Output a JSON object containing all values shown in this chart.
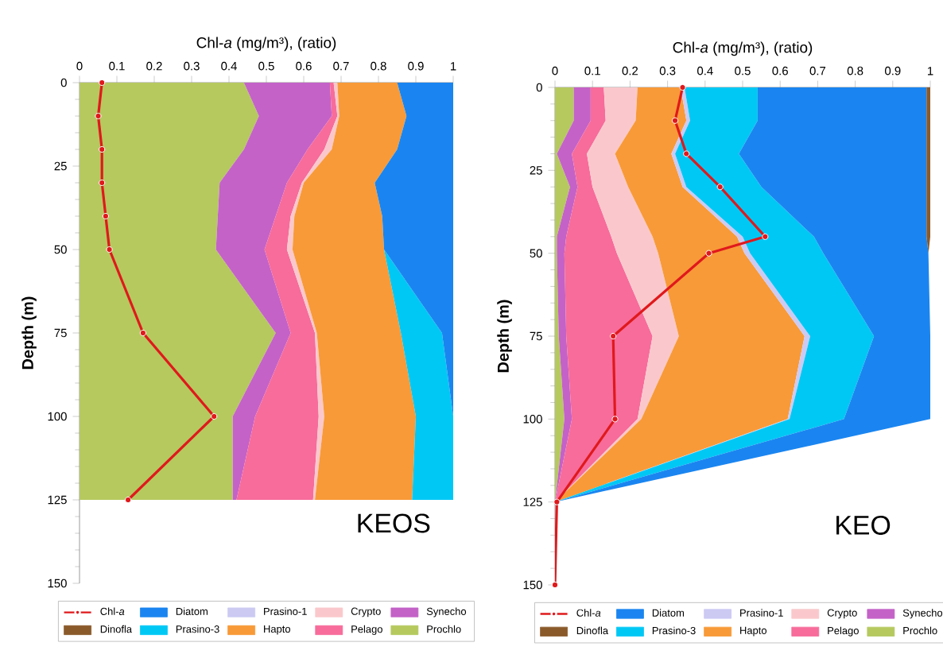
{
  "chart_data": [
    {
      "type": "area",
      "stacked": true,
      "orientation": "horizontal",
      "xlabel": "Chl-*a* (mg/m³), (ratio)",
      "ylabel": "Depth (m)",
      "annotations": [
        "KEOS"
      ],
      "legend": "bottom",
      "xlim": [
        0,
        1
      ],
      "xticks": [
        0,
        0.1,
        0.2,
        0.3,
        0.4,
        0.5,
        0.6,
        0.7,
        0.8,
        0.9,
        1
      ],
      "ylim": [
        150,
        0
      ],
      "yticks": [
        0,
        25,
        50,
        75,
        100,
        125,
        150
      ],
      "x": [
        0,
        10,
        20,
        30,
        40,
        50,
        75,
        100,
        125
      ],
      "series": [
        {
          "name": "Prochlo",
          "color": "#b5c95f",
          "values": [
            0.44,
            0.48,
            0.44,
            0.375,
            0.37,
            0.365,
            0.525,
            0.41,
            0.41
          ]
        },
        {
          "name": "Synecho",
          "color": "#c462c8",
          "values": [
            0.23,
            0.195,
            0.17,
            0.18,
            0.155,
            0.13,
            0.04,
            0.06,
            0.01
          ]
        },
        {
          "name": "Pelago",
          "color": "#f76c9b",
          "values": [
            0.01,
            0.015,
            0.045,
            0.04,
            0.04,
            0.06,
            0.065,
            0.17,
            0.205
          ]
        },
        {
          "name": "Crypto",
          "color": "#fac8cc",
          "values": [
            0.01,
            0.005,
            0.02,
            0.005,
            0.01,
            0.015,
            0.005,
            0.015,
            0.005
          ]
        },
        {
          "name": "Hapto",
          "color": "#f89a38",
          "values": [
            0.16,
            0.18,
            0.175,
            0.19,
            0.235,
            0.245,
            0.225,
            0.245,
            0.26
          ]
        },
        {
          "name": "Prasino-1",
          "color": "#cccaf3",
          "values": [
            null,
            null,
            null,
            null,
            null,
            null,
            null,
            null,
            null
          ]
        },
        {
          "name": "Prasino-3",
          "color": "#00c8f5",
          "values": [
            null,
            null,
            null,
            null,
            null,
            0,
            0.11,
            0.1,
            0.11
          ]
        },
        {
          "name": "Diatom",
          "color": "#1a85f0",
          "values": [
            0.15,
            0.125,
            0.15,
            0.21,
            0.19,
            0.185,
            0.03,
            0,
            null
          ]
        },
        {
          "name": "Dinofla",
          "color": "#8b5a2b",
          "values": [
            null,
            null,
            null,
            null,
            null,
            null,
            null,
            null,
            null
          ]
        },
        {
          "name": "Chl-*a*",
          "type": "line",
          "color": "#e0191c",
          "marker": "circle",
          "line_style": "solid",
          "x": [
            0,
            10,
            20,
            30,
            40,
            50,
            75,
            100,
            125
          ],
          "values": [
            0.06,
            0.05,
            0.06,
            0.06,
            0.07,
            0.08,
            0.17,
            0.36,
            0.13
          ]
        }
      ]
    },
    {
      "type": "area",
      "stacked": true,
      "orientation": "horizontal",
      "xlabel": "Chl-*a* (mg/m³), (ratio)",
      "ylabel": "Depth (m)",
      "annotations": [
        "KEO"
      ],
      "legend": "bottom",
      "xlim": [
        0,
        1
      ],
      "xticks": [
        0,
        0.1,
        0.2,
        0.3,
        0.4,
        0.5,
        0.6,
        0.7,
        0.8,
        0.9,
        1
      ],
      "ylim": [
        150,
        0
      ],
      "yticks": [
        0,
        25,
        50,
        75,
        100,
        125,
        150
      ],
      "x": [
        0,
        10,
        20,
        30,
        45,
        50,
        75,
        100,
        125
      ],
      "series": [
        {
          "name": "Prochlo",
          "color": "#b5c95f",
          "values": [
            0.05,
            0.05,
            0.005,
            0.04,
            0.005,
            0.005,
            0.01,
            0.025,
            0
          ]
        },
        {
          "name": "Synecho",
          "color": "#c462c8",
          "values": [
            0.045,
            0.045,
            0.04,
            0.02,
            0.025,
            0.02,
            0.02,
            0.02,
            0
          ]
        },
        {
          "name": "Pelago",
          "color": "#f76c9b",
          "values": [
            0.035,
            0.04,
            0.04,
            0.04,
            0.12,
            0.14,
            0.23,
            0.175,
            0
          ]
        },
        {
          "name": "Crypto",
          "color": "#fac8cc",
          "values": [
            0.09,
            0.08,
            0.075,
            0.095,
            0.11,
            0.11,
            0.07,
            0.01,
            0
          ]
        },
        {
          "name": "Hapto",
          "color": "#f89a38",
          "values": [
            0.115,
            0.135,
            0.15,
            0.145,
            0.225,
            0.23,
            0.335,
            0.39,
            0
          ]
        },
        {
          "name": "Prasino-1",
          "color": "#cccaf3",
          "values": [
            0.01,
            0.01,
            0.01,
            0.01,
            0.015,
            0.015,
            0.015,
            0.005,
            0
          ]
        },
        {
          "name": "Prasino-3",
          "color": "#00c8f5",
          "values": [
            0.195,
            0.18,
            0.17,
            0.2,
            0.19,
            0.195,
            0.17,
            0.145,
            0
          ]
        },
        {
          "name": "Diatom",
          "color": "#1a85f0",
          "values": [
            0.45,
            0.45,
            0.5,
            0.44,
            0.3,
            0.28,
            0.15,
            0.23,
            0
          ]
        },
        {
          "name": "Dinofla",
          "color": "#8b5a2b",
          "values": [
            0.01,
            0.01,
            0.01,
            0.01,
            0.01,
            0,
            null,
            null,
            null
          ]
        },
        {
          "name": "Chl-*a*",
          "type": "line",
          "color": "#e0191c",
          "marker": "circle",
          "line_style": "solid",
          "x": [
            0,
            10,
            20,
            30,
            45,
            50,
            75,
            100,
            125,
            150
          ],
          "values": [
            0.34,
            0.32,
            0.35,
            0.44,
            0.56,
            0.41,
            0.155,
            0.16,
            0.005,
            0
          ]
        }
      ]
    }
  ]
}
